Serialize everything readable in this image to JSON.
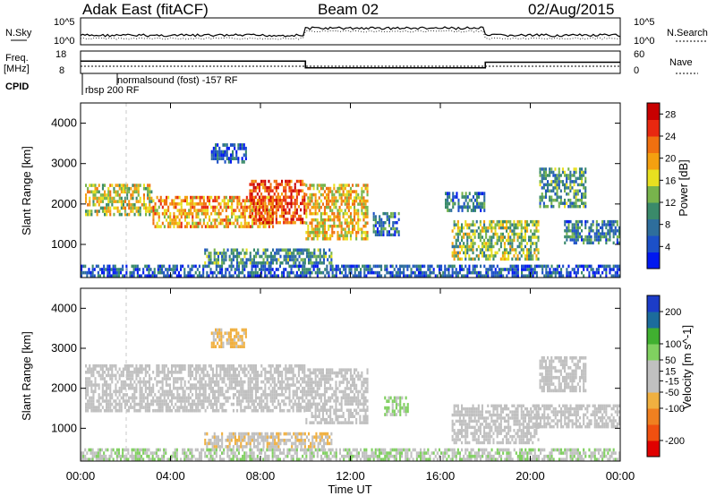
{
  "header": {
    "station": "Adak East (fitACF)",
    "beam": "Beam 02",
    "date": "02/Aug/2015"
  },
  "meta_panels": {
    "nsky_label": "N.Sky",
    "nsearch_label": "N.Search",
    "freq_label_line1": "Freq.",
    "freq_label_line2": "[MHz]",
    "nave_label": "Nave",
    "cpid_label": "CPID",
    "noise_ticks_left": [
      "10^5",
      "10^0"
    ],
    "noise_ticks_right": [
      "10^5",
      "10^0"
    ],
    "freq_ticks": [
      "18",
      "8"
    ],
    "nave_ticks": [
      "60",
      "0"
    ],
    "cpid_entries": [
      {
        "text": "rbsp 200 RF",
        "start_hour": 0.0
      },
      {
        "text": "normalsound (fost) -157 RF",
        "start_hour": 1.6
      }
    ],
    "frequency_profile_mhz": [
      {
        "t0": 0.0,
        "t1": 10.0,
        "value": 13.5
      },
      {
        "t0": 10.0,
        "t1": 18.0,
        "value": 10.5
      },
      {
        "t0": 18.0,
        "t1": 24.0,
        "value": 13.0
      }
    ]
  },
  "chart_data": [
    {
      "type": "heatmap",
      "title": "Power",
      "xlabel": "Time UT",
      "ylabel": "Slant Range [km]",
      "xlim_hours": [
        0,
        24
      ],
      "ylim_km": [
        180,
        4500
      ],
      "y_ticks": [
        "4000",
        "3000",
        "2000",
        "1000"
      ],
      "colorbar": {
        "label": "Power [dB]",
        "ticks": [
          "28",
          "24",
          "20",
          "16",
          "12",
          "8",
          "4"
        ],
        "range": [
          0,
          30
        ],
        "colors": [
          "#0018f0",
          "#1c50c8",
          "#2e6e9c",
          "#3a8a6a",
          "#78b44c",
          "#e8e020",
          "#f4a010",
          "#f07010",
          "#e82810",
          "#c80000"
        ]
      },
      "regions": [
        {
          "t0": 0.2,
          "t1": 3.2,
          "r0": 1700,
          "r1": 2500,
          "level": 16
        },
        {
          "t0": 3.2,
          "t1": 8.6,
          "r0": 1400,
          "r1": 2200,
          "level": 20
        },
        {
          "t0": 7.5,
          "t1": 10.0,
          "r0": 1500,
          "r1": 2600,
          "level": 24
        },
        {
          "t0": 10.0,
          "t1": 12.8,
          "r0": 1100,
          "r1": 2500,
          "level": 18
        },
        {
          "t0": 5.5,
          "t1": 11.2,
          "r0": 500,
          "r1": 900,
          "level": 10
        },
        {
          "t0": 5.8,
          "t1": 7.4,
          "r0": 3000,
          "r1": 3500,
          "level": 6
        },
        {
          "t0": 13.0,
          "t1": 14.2,
          "r0": 1200,
          "r1": 1800,
          "level": 8
        },
        {
          "t0": 16.5,
          "t1": 20.4,
          "r0": 600,
          "r1": 1600,
          "level": 14
        },
        {
          "t0": 16.2,
          "t1": 18.0,
          "r0": 1800,
          "r1": 2300,
          "level": 8
        },
        {
          "t0": 20.4,
          "t1": 22.5,
          "r0": 1900,
          "r1": 2900,
          "level": 10
        },
        {
          "t0": 21.5,
          "t1": 24.0,
          "r0": 1000,
          "r1": 1600,
          "level": 8
        },
        {
          "t0": 0.0,
          "t1": 24.0,
          "r0": 180,
          "r1": 500,
          "level": 6
        }
      ]
    },
    {
      "type": "heatmap",
      "title": "Velocity",
      "xlabel": "Time UT",
      "ylabel": "Slant Range [km]",
      "xlim_hours": [
        0,
        24
      ],
      "ylim_km": [
        180,
        4500
      ],
      "y_ticks": [
        "4000",
        "3000",
        "2000",
        "1000"
      ],
      "x_ticks": [
        "00:00",
        "04:00",
        "08:00",
        "12:00",
        "16:00",
        "20:00",
        "00:00"
      ],
      "colorbar": {
        "label": "Velocity [m s^-1]",
        "ticks": [
          "200",
          "100",
          "50",
          "15",
          "-15",
          "-50",
          "-100",
          "-200"
        ],
        "range": [
          -250,
          250
        ],
        "colors": [
          "#e00000",
          "#f05010",
          "#f08020",
          "#f0b040",
          "#c0c0c0",
          "#c0c0c0",
          "#80d060",
          "#40b030",
          "#1c6c9c",
          "#1c3cc8"
        ]
      },
      "regions": [
        {
          "t0": 0.2,
          "t1": 10.0,
          "r0": 1400,
          "r1": 2600,
          "level": 0
        },
        {
          "t0": 10.0,
          "t1": 12.8,
          "r0": 1100,
          "r1": 2500,
          "level": -20
        },
        {
          "t0": 5.5,
          "t1": 11.2,
          "r0": 500,
          "r1": 900,
          "level": -40
        },
        {
          "t0": 5.8,
          "t1": 7.4,
          "r0": 3000,
          "r1": 3500,
          "level": -60
        },
        {
          "t0": 13.5,
          "t1": 14.6,
          "r0": 1300,
          "r1": 1800,
          "level": 60
        },
        {
          "t0": 16.5,
          "t1": 20.4,
          "r0": 600,
          "r1": 1600,
          "level": 0
        },
        {
          "t0": 20.0,
          "t1": 24.0,
          "r0": 1000,
          "r1": 1600,
          "level": 0
        },
        {
          "t0": 20.4,
          "t1": 22.5,
          "r0": 1900,
          "r1": 2800,
          "level": 0
        },
        {
          "t0": 0.0,
          "t1": 24.0,
          "r0": 180,
          "r1": 500,
          "level": 40
        }
      ]
    }
  ],
  "footer": {
    "xlabel": "Time UT"
  }
}
